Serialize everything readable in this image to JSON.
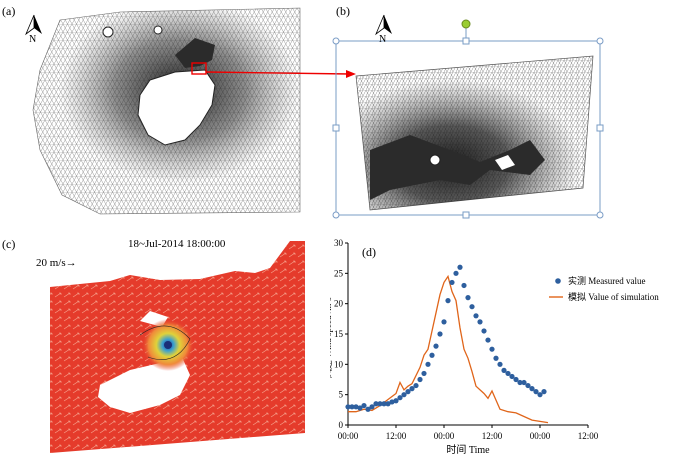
{
  "panels": {
    "a": {
      "label": "(a)",
      "north": "N"
    },
    "b": {
      "label": "(b)",
      "north": "N"
    },
    "c": {
      "label": "(c)",
      "timestamp": "18~Jul-2014 18:00:00",
      "scale_label": "20 m/s→"
    },
    "d": {
      "label": "(d)"
    }
  },
  "colors": {
    "mesh_line": "#8a8a8a",
    "land_dark": "#2b2b2b",
    "arrow": "#e8553b",
    "field_red": "#e53b2b",
    "selection_box": "#7a9cc6",
    "handle_green": "#9acd32",
    "measured": "#2e5f9e",
    "simulated": "#e0651a"
  },
  "chart_data": {
    "type": "line",
    "xlabel": "时间 Time",
    "ylabel": "风速 Wind speed /m·s⁻¹",
    "x_tick_labels": [
      "00:00",
      "12:00",
      "00:00",
      "12:00",
      "00:00",
      "12:00"
    ],
    "x_tick_hours": [
      0,
      12,
      24,
      36,
      48,
      60
    ],
    "ylim": [
      0,
      30
    ],
    "y_ticks": [
      0,
      5,
      10,
      15,
      20,
      25,
      30
    ],
    "legend_position": "right",
    "series": [
      {
        "name": "实测 Measured value",
        "style": "scatter",
        "x": [
          0,
          1,
          2,
          3,
          4,
          5,
          6,
          7,
          8,
          9,
          10,
          11,
          12,
          13,
          14,
          15,
          16,
          17,
          18,
          19,
          20,
          21,
          22,
          23,
          24,
          25,
          26,
          27,
          28,
          29,
          30,
          31,
          32,
          33,
          34,
          35,
          36,
          37,
          38,
          39,
          40,
          41,
          42,
          43,
          44,
          45,
          46,
          47,
          48,
          49
        ],
        "y": [
          3,
          3,
          3,
          2.8,
          3.2,
          2.6,
          3,
          3.5,
          3.5,
          3.5,
          3.5,
          3.8,
          4,
          4.5,
          5,
          5.5,
          6,
          6.5,
          7.5,
          8.5,
          10,
          11.5,
          13,
          15,
          17,
          20.5,
          23.5,
          25,
          26,
          23,
          21,
          19.5,
          18,
          17,
          15.5,
          14,
          12.5,
          11,
          10,
          9,
          8.5,
          8,
          7.5,
          7,
          7,
          6.5,
          6,
          5.5,
          5,
          5.5
        ]
      },
      {
        "name": "模拟 Value of simulation",
        "style": "line",
        "x": [
          0,
          2,
          4,
          6,
          8,
          10,
          12,
          13,
          14,
          15,
          16,
          18,
          19,
          20,
          21,
          22,
          23,
          24,
          25,
          26,
          27,
          28,
          29,
          30,
          31,
          32,
          34,
          35,
          36,
          38,
          40,
          42,
          44,
          46,
          48,
          50
        ],
        "y": [
          2.2,
          2.2,
          2.6,
          2.4,
          3.2,
          4.2,
          5.2,
          7,
          5.8,
          6.4,
          6.8,
          9.5,
          11.5,
          12.5,
          15.5,
          18.5,
          21.5,
          23.5,
          24.5,
          22,
          20.5,
          16,
          12.5,
          11,
          8.8,
          6.4,
          5.2,
          4.4,
          5.6,
          2.6,
          2.2,
          2,
          1.4,
          0.8,
          0.6,
          0.4
        ]
      }
    ]
  }
}
